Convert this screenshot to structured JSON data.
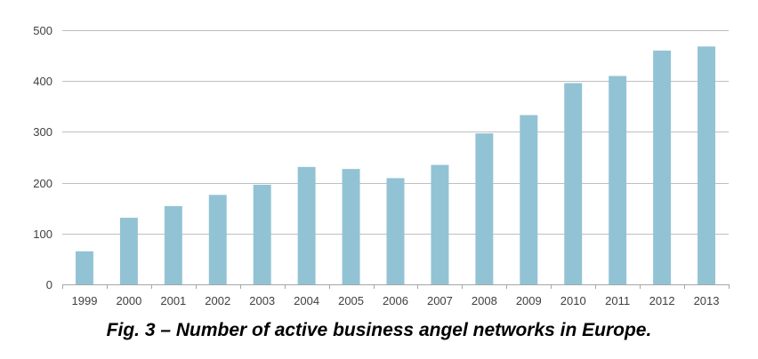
{
  "chart_data": {
    "type": "bar",
    "title": "",
    "xlabel": "",
    "ylabel": "",
    "categories": [
      "1999",
      "2000",
      "2001",
      "2002",
      "2003",
      "2004",
      "2005",
      "2006",
      "2007",
      "2008",
      "2009",
      "2010",
      "2011",
      "2012",
      "2013"
    ],
    "values": [
      65,
      131,
      154,
      176,
      196,
      231,
      227,
      209,
      235,
      297,
      333,
      396,
      410,
      460,
      468
    ],
    "ylim": [
      0,
      500
    ],
    "yticks": [
      0,
      100,
      200,
      300,
      400,
      500
    ],
    "grid": true,
    "legend": "none",
    "bar_color": "#92C3D4",
    "grid_color": "#BFBFBF",
    "axis_color": "#A6A6A6"
  },
  "caption": "Fig. 3 – Number of active business angel networks in Europe."
}
